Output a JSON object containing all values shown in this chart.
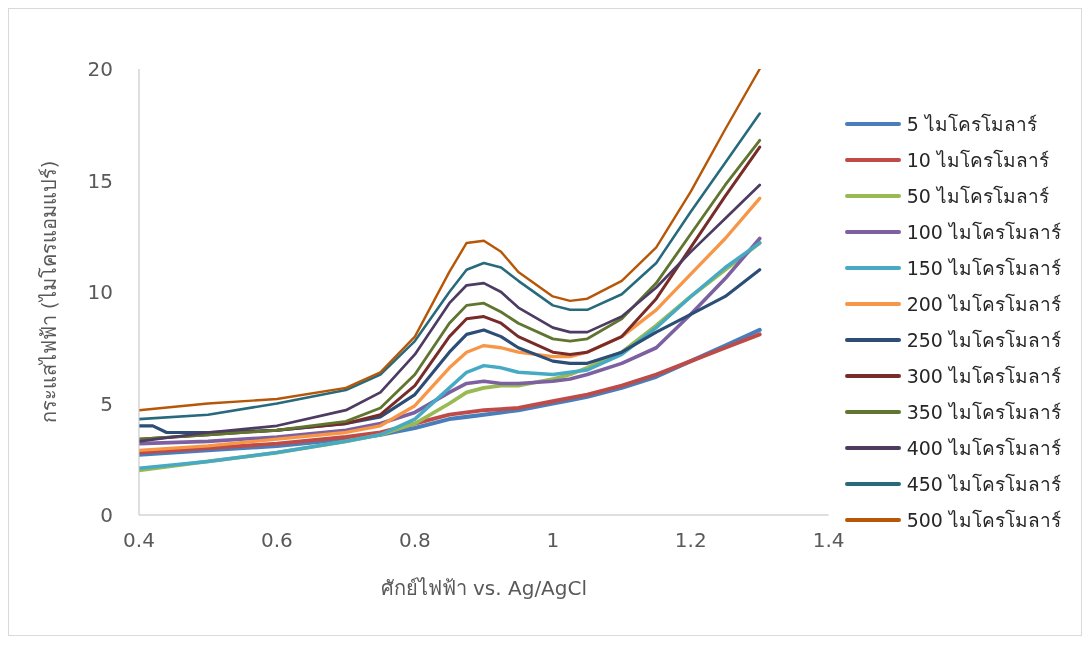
{
  "chart_data": {
    "type": "line",
    "xlabel": "ศักย์ไฟฟ้า vs. Ag/AgCl",
    "ylabel": "กระแสไฟฟ้า (ไมโครแอมแปร์)",
    "x": [
      0.4,
      0.5,
      0.6,
      0.7,
      0.75,
      0.8,
      0.85,
      0.875,
      0.9,
      0.925,
      0.95,
      1.0,
      1.025,
      1.05,
      1.1,
      1.15,
      1.2,
      1.25,
      1.3
    ],
    "xlim": [
      0.4,
      1.4
    ],
    "xticks": [
      0.4,
      0.6,
      0.8,
      1,
      1.2,
      1.4
    ],
    "ylim": [
      0,
      20
    ],
    "yticks": [
      0,
      5,
      10,
      15,
      20
    ],
    "grid": false,
    "legend": "right",
    "marker": "none",
    "line_style": "solid",
    "series": [
      {
        "name": "5 ไมโครโมลาร์",
        "color": "#4a7ebb",
        "values": [
          2.7,
          2.9,
          3.1,
          3.4,
          3.6,
          3.9,
          4.3,
          4.4,
          4.5,
          4.6,
          4.7,
          5.0,
          5.15,
          5.3,
          5.7,
          6.2,
          6.9,
          7.6,
          8.3
        ]
      },
      {
        "name": "10 ไมโครโมลาร์",
        "color": "#be4b48",
        "values": [
          2.8,
          3.0,
          3.2,
          3.5,
          3.7,
          4.1,
          4.5,
          4.6,
          4.7,
          4.75,
          4.8,
          5.1,
          5.25,
          5.4,
          5.8,
          6.3,
          6.9,
          7.5,
          8.1
        ]
      },
      {
        "name": "50 ไมโครโมลาร์",
        "color": "#98b954",
        "values": [
          2.0,
          2.4,
          2.8,
          3.3,
          3.6,
          4.1,
          5.0,
          5.5,
          5.7,
          5.8,
          5.8,
          6.1,
          6.3,
          6.6,
          7.3,
          8.5,
          9.8,
          11.0,
          12.2
        ]
      },
      {
        "name": "100 ไมโครโมลาร์",
        "color": "#7d60a0",
        "values": [
          3.2,
          3.3,
          3.5,
          3.8,
          4.1,
          4.6,
          5.5,
          5.9,
          6.0,
          5.9,
          5.9,
          6.0,
          6.1,
          6.3,
          6.8,
          7.5,
          9.0,
          10.6,
          12.4
        ]
      },
      {
        "name": "150 ไมโครโมลาร์",
        "color": "#46aac5",
        "values": [
          2.1,
          2.4,
          2.8,
          3.3,
          3.6,
          4.3,
          5.7,
          6.4,
          6.7,
          6.6,
          6.4,
          6.3,
          6.4,
          6.5,
          7.2,
          8.4,
          9.8,
          11.1,
          12.2
        ]
      },
      {
        "name": "200 ไมโครโมลาร์",
        "color": "#f79646",
        "values": [
          2.9,
          3.1,
          3.4,
          3.7,
          4.0,
          4.9,
          6.6,
          7.3,
          7.6,
          7.5,
          7.3,
          7.1,
          7.1,
          7.3,
          8.0,
          9.2,
          10.8,
          12.4,
          14.2
        ]
      },
      {
        "name": "250 ไมโครโมลาร์",
        "color": "#2c4d75",
        "x": [
          0.4,
          0.42,
          0.44,
          0.5,
          0.6,
          0.7,
          0.75,
          0.8,
          0.85,
          0.875,
          0.9,
          0.925,
          0.95,
          1.0,
          1.025,
          1.05,
          1.1,
          1.15,
          1.2,
          1.25,
          1.3
        ],
        "values": [
          4.0,
          4.0,
          3.7,
          3.7,
          3.8,
          4.1,
          4.4,
          5.4,
          7.3,
          8.1,
          8.3,
          8.0,
          7.5,
          6.9,
          6.8,
          6.8,
          7.3,
          8.2,
          9.0,
          9.8,
          11.0
        ]
      },
      {
        "name": "300 ไมโครโมลาร์",
        "color": "#772c2a",
        "values": [
          3.4,
          3.6,
          3.8,
          4.1,
          4.5,
          5.8,
          8.0,
          8.8,
          8.9,
          8.6,
          8.0,
          7.3,
          7.2,
          7.3,
          8.0,
          9.7,
          12.0,
          14.3,
          16.5
        ]
      },
      {
        "name": "350 ไมโครโมลาร์",
        "color": "#5f7530",
        "values": [
          3.4,
          3.6,
          3.8,
          4.2,
          4.8,
          6.3,
          8.6,
          9.4,
          9.5,
          9.1,
          8.6,
          7.9,
          7.8,
          7.9,
          8.8,
          10.4,
          12.6,
          14.8,
          16.8
        ]
      },
      {
        "name": "400 ไมโครโมลาร์",
        "color": "#4d3b62",
        "values": [
          3.3,
          3.7,
          4.0,
          4.7,
          5.5,
          7.2,
          9.5,
          10.3,
          10.4,
          10.0,
          9.3,
          8.4,
          8.2,
          8.2,
          8.9,
          10.2,
          11.8,
          13.3,
          14.8
        ]
      },
      {
        "name": "450 ไมโครโมลาร์",
        "color": "#276a7c",
        "values": [
          4.3,
          4.5,
          5.0,
          5.6,
          6.3,
          7.8,
          10.0,
          11.0,
          11.3,
          11.1,
          10.5,
          9.4,
          9.2,
          9.2,
          9.9,
          11.3,
          13.6,
          15.8,
          18.0
        ]
      },
      {
        "name": "500 ไมโครโมลาร์",
        "color": "#b65708",
        "values": [
          4.7,
          5.0,
          5.2,
          5.7,
          6.4,
          8.0,
          10.9,
          12.2,
          12.3,
          11.8,
          10.9,
          9.8,
          9.6,
          9.7,
          10.5,
          12.0,
          14.5,
          17.3,
          20.0
        ]
      }
    ]
  }
}
